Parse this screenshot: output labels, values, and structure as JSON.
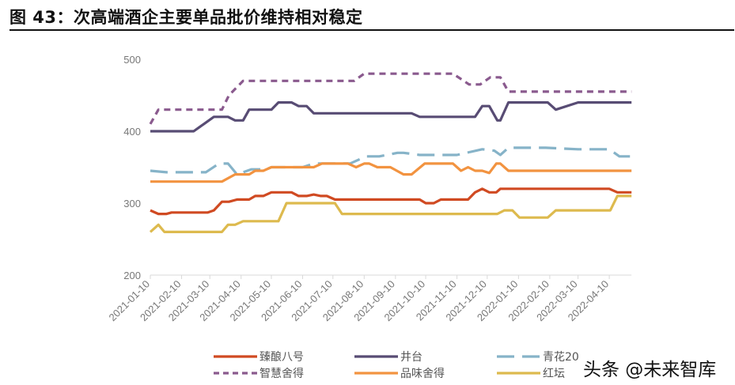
{
  "title": "图 43：次高端酒企主要单品批价维持相对稳定",
  "watermark": "头条 @未来智库",
  "chart_data": {
    "type": "line",
    "title": "图 43：次高端酒企主要单品批价维持相对稳定",
    "xlabel": "",
    "ylabel": "",
    "ylim": [
      200,
      500
    ],
    "yticks": [
      200,
      300,
      400,
      500
    ],
    "xlim": [
      "2021-01-10",
      "2022-05-02"
    ],
    "xticks": [
      "2021-01-10",
      "2021-02-10",
      "2021-03-10",
      "2021-04-10",
      "2021-05-10",
      "2021-06-10",
      "2021-07-10",
      "2021-08-10",
      "2021-09-10",
      "2021-10-10",
      "2021-11-10",
      "2021-12-10",
      "2022-01-10",
      "2022-02-10",
      "2022-03-10",
      "2022-04-10"
    ],
    "grid": false,
    "legend": "bottom",
    "series": [
      {
        "name": "臻酿八号",
        "color": "#D04A22",
        "style": "solid",
        "points": [
          [
            "2021-01-10",
            290
          ],
          [
            "2021-01-18",
            285
          ],
          [
            "2021-01-26",
            285
          ],
          [
            "2021-01-31",
            287
          ],
          [
            "2021-03-08",
            287
          ],
          [
            "2021-03-14",
            290
          ],
          [
            "2021-03-22",
            302
          ],
          [
            "2021-03-29",
            302
          ],
          [
            "2021-04-06",
            305
          ],
          [
            "2021-04-18",
            305
          ],
          [
            "2021-04-24",
            310
          ],
          [
            "2021-05-02",
            310
          ],
          [
            "2021-05-10",
            315
          ],
          [
            "2021-05-30",
            315
          ],
          [
            "2021-06-06",
            310
          ],
          [
            "2021-06-14",
            310
          ],
          [
            "2021-06-21",
            312
          ],
          [
            "2021-06-28",
            310
          ],
          [
            "2021-07-04",
            310
          ],
          [
            "2021-07-12",
            305
          ],
          [
            "2021-10-04",
            305
          ],
          [
            "2021-10-10",
            300
          ],
          [
            "2021-10-18",
            300
          ],
          [
            "2021-10-25",
            305
          ],
          [
            "2021-11-21",
            305
          ],
          [
            "2021-11-28",
            315
          ],
          [
            "2021-12-05",
            320
          ],
          [
            "2021-12-12",
            315
          ],
          [
            "2021-12-19",
            315
          ],
          [
            "2021-12-23",
            320
          ],
          [
            "2022-04-10",
            320
          ],
          [
            "2022-04-18",
            315
          ],
          [
            "2022-05-02",
            315
          ]
        ]
      },
      {
        "name": "井台",
        "color": "#584C74",
        "style": "solid",
        "points": [
          [
            "2021-01-10",
            400
          ],
          [
            "2021-02-22",
            400
          ],
          [
            "2021-03-04",
            410
          ],
          [
            "2021-03-14",
            420
          ],
          [
            "2021-03-28",
            420
          ],
          [
            "2021-04-04",
            415
          ],
          [
            "2021-04-12",
            415
          ],
          [
            "2021-04-18",
            430
          ],
          [
            "2021-05-10",
            430
          ],
          [
            "2021-05-17",
            440
          ],
          [
            "2021-05-30",
            440
          ],
          [
            "2021-06-06",
            435
          ],
          [
            "2021-06-14",
            435
          ],
          [
            "2021-06-21",
            425
          ],
          [
            "2021-09-26",
            425
          ],
          [
            "2021-10-04",
            420
          ],
          [
            "2021-11-28",
            420
          ],
          [
            "2021-12-05",
            435
          ],
          [
            "2021-12-12",
            435
          ],
          [
            "2021-12-20",
            415
          ],
          [
            "2021-12-23",
            415
          ],
          [
            "2021-12-31",
            440
          ],
          [
            "2022-02-08",
            440
          ],
          [
            "2022-02-16",
            430
          ],
          [
            "2022-03-10",
            440
          ],
          [
            "2022-05-02",
            440
          ]
        ]
      },
      {
        "name": "青花20",
        "color": "#86B3C8",
        "style": "longdash",
        "points": [
          [
            "2021-01-10",
            345
          ],
          [
            "2021-01-26",
            343
          ],
          [
            "2021-03-06",
            343
          ],
          [
            "2021-03-19",
            355
          ],
          [
            "2021-03-28",
            355
          ],
          [
            "2021-04-06",
            340
          ],
          [
            "2021-04-20",
            347
          ],
          [
            "2021-05-05",
            347
          ],
          [
            "2021-05-10",
            350
          ],
          [
            "2021-06-10",
            350
          ],
          [
            "2021-06-21",
            355
          ],
          [
            "2021-07-27",
            355
          ],
          [
            "2021-08-12",
            365
          ],
          [
            "2021-08-25",
            365
          ],
          [
            "2021-09-12",
            370
          ],
          [
            "2021-09-18",
            370
          ],
          [
            "2021-10-04",
            367
          ],
          [
            "2021-11-10",
            367
          ],
          [
            "2021-12-05",
            375
          ],
          [
            "2021-12-17",
            373
          ],
          [
            "2021-12-23",
            367
          ],
          [
            "2021-12-31",
            377
          ],
          [
            "2022-02-06",
            377
          ],
          [
            "2022-03-10",
            375
          ],
          [
            "2022-04-10",
            375
          ],
          [
            "2022-04-20",
            365
          ],
          [
            "2022-05-02",
            365
          ]
        ]
      },
      {
        "name": "智慧舍得",
        "color": "#8A5A8E",
        "style": "dash",
        "points": [
          [
            "2021-01-10",
            410
          ],
          [
            "2021-01-18",
            430
          ],
          [
            "2021-03-22",
            430
          ],
          [
            "2021-03-29",
            450
          ],
          [
            "2021-04-12",
            470
          ],
          [
            "2021-07-31",
            470
          ],
          [
            "2021-08-10",
            480
          ],
          [
            "2021-11-06",
            480
          ],
          [
            "2021-11-22",
            465
          ],
          [
            "2021-12-03",
            465
          ],
          [
            "2021-12-13",
            475
          ],
          [
            "2021-12-23",
            475
          ],
          [
            "2021-12-31",
            455
          ],
          [
            "2022-05-02",
            455
          ]
        ]
      },
      {
        "name": "品味舍得",
        "color": "#F29340",
        "style": "solid",
        "points": [
          [
            "2021-01-10",
            330
          ],
          [
            "2021-03-22",
            330
          ],
          [
            "2021-04-04",
            340
          ],
          [
            "2021-04-18",
            340
          ],
          [
            "2021-04-24",
            345
          ],
          [
            "2021-05-02",
            345
          ],
          [
            "2021-05-10",
            350
          ],
          [
            "2021-06-21",
            350
          ],
          [
            "2021-06-29",
            355
          ],
          [
            "2021-07-25",
            355
          ],
          [
            "2021-08-02",
            350
          ],
          [
            "2021-08-10",
            355
          ],
          [
            "2021-08-15",
            355
          ],
          [
            "2021-08-23",
            350
          ],
          [
            "2021-09-05",
            350
          ],
          [
            "2021-09-18",
            340
          ],
          [
            "2021-09-26",
            340
          ],
          [
            "2021-10-09",
            355
          ],
          [
            "2021-11-06",
            355
          ],
          [
            "2021-11-14",
            345
          ],
          [
            "2021-11-21",
            350
          ],
          [
            "2021-11-28",
            345
          ],
          [
            "2021-12-05",
            345
          ],
          [
            "2021-12-12",
            342
          ],
          [
            "2021-12-19",
            355
          ],
          [
            "2021-12-23",
            355
          ],
          [
            "2021-12-31",
            345
          ],
          [
            "2022-05-02",
            345
          ]
        ]
      },
      {
        "name": "红坛",
        "color": "#DDBA4E",
        "style": "solid",
        "points": [
          [
            "2021-01-10",
            260
          ],
          [
            "2021-01-18",
            270
          ],
          [
            "2021-01-24",
            260
          ],
          [
            "2021-03-22",
            260
          ],
          [
            "2021-03-28",
            270
          ],
          [
            "2021-04-04",
            270
          ],
          [
            "2021-04-12",
            275
          ],
          [
            "2021-05-17",
            275
          ],
          [
            "2021-05-25",
            300
          ],
          [
            "2021-07-12",
            300
          ],
          [
            "2021-07-19",
            285
          ],
          [
            "2021-12-20",
            285
          ],
          [
            "2021-12-27",
            290
          ],
          [
            "2022-01-04",
            290
          ],
          [
            "2022-01-11",
            280
          ],
          [
            "2022-02-08",
            280
          ],
          [
            "2022-02-16",
            290
          ],
          [
            "2022-04-11",
            290
          ],
          [
            "2022-04-18",
            310
          ],
          [
            "2022-05-02",
            310
          ]
        ]
      }
    ]
  }
}
